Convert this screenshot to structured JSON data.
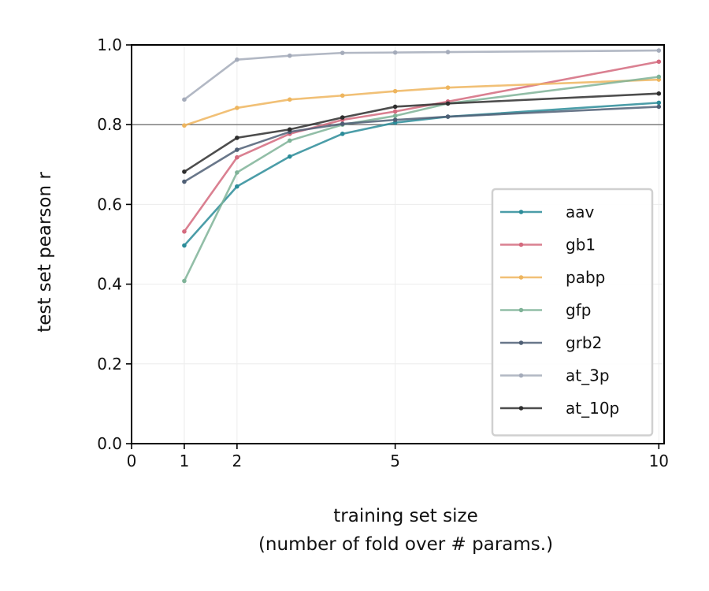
{
  "chart_data": {
    "type": "line",
    "xlabel": "training set size",
    "xlabel_line2": "(number of fold over # params.)",
    "ylabel": "test set pearson r",
    "xlim": [
      0,
      10.1
    ],
    "ylim": [
      0.0,
      1.0
    ],
    "xticks": [
      0,
      1,
      2,
      5,
      10
    ],
    "xtick_labels": [
      "0",
      "1",
      "2",
      "5",
      "10"
    ],
    "yticks": [
      0.0,
      0.2,
      0.4,
      0.6,
      0.8,
      1.0
    ],
    "ytick_labels": [
      "0.0",
      "0.2",
      "0.4",
      "0.6",
      "0.8",
      "1.0"
    ],
    "reference_line": 0.8,
    "grid": true,
    "legend_position": "lower-right",
    "series": [
      {
        "name": "aav",
        "color": "#2b8c99",
        "x": [
          1,
          2,
          3,
          4,
          5,
          6,
          10
        ],
        "y": [
          0.497,
          0.645,
          0.72,
          0.777,
          0.805,
          0.82,
          0.855
        ]
      },
      {
        "name": "gb1",
        "color": "#d46a7e",
        "x": [
          1,
          2,
          3,
          4,
          5,
          6,
          10
        ],
        "y": [
          0.532,
          0.718,
          0.777,
          0.812,
          0.833,
          0.858,
          0.958
        ]
      },
      {
        "name": "pabp",
        "color": "#eeb55e",
        "x": [
          1,
          2,
          3,
          4,
          5,
          6,
          10
        ],
        "y": [
          0.798,
          0.842,
          0.863,
          0.873,
          0.884,
          0.893,
          0.913
        ]
      },
      {
        "name": "gfp",
        "color": "#7fb398",
        "x": [
          1,
          2,
          3,
          4,
          5,
          6,
          10
        ],
        "y": [
          0.408,
          0.68,
          0.76,
          0.8,
          0.822,
          0.853,
          0.92
        ]
      },
      {
        "name": "grb2",
        "color": "#4f5f75",
        "x": [
          1,
          2,
          3,
          4,
          5,
          6,
          10
        ],
        "y": [
          0.657,
          0.737,
          0.782,
          0.802,
          0.812,
          0.82,
          0.845
        ]
      },
      {
        "name": "at_3p",
        "color": "#a4abba",
        "x": [
          1,
          2,
          3,
          4,
          5,
          6,
          10
        ],
        "y": [
          0.863,
          0.963,
          0.973,
          0.98,
          0.981,
          0.982,
          0.986
        ]
      },
      {
        "name": "at_10p",
        "color": "#2e2e2e",
        "x": [
          1,
          2,
          3,
          4,
          5,
          6,
          10
        ],
        "y": [
          0.682,
          0.767,
          0.788,
          0.818,
          0.845,
          0.853,
          0.878
        ]
      }
    ]
  }
}
